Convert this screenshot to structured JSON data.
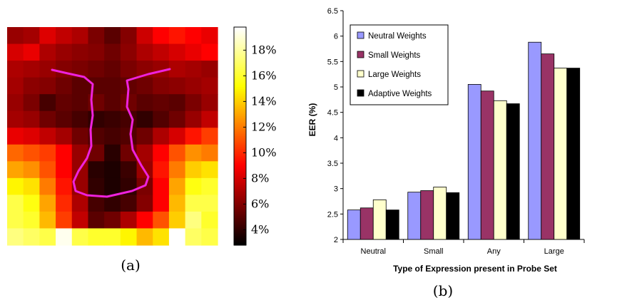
{
  "chart_data": [
    {
      "type": "heatmap",
      "caption": "(a)",
      "grid_rows": 13,
      "grid_cols": 13,
      "values": [
        [
          6.5,
          6.8,
          8.2,
          7.5,
          7.0,
          5.8,
          5.0,
          6.0,
          7.8,
          9.0,
          9.5,
          9.0,
          8.5
        ],
        [
          8.0,
          8.5,
          7.0,
          6.5,
          6.2,
          6.0,
          5.5,
          6.2,
          7.0,
          7.5,
          8.0,
          8.5,
          9.0
        ],
        [
          7.0,
          6.8,
          6.5,
          6.0,
          5.8,
          5.5,
          5.2,
          5.8,
          6.2,
          6.5,
          7.0,
          6.8,
          6.5
        ],
        [
          6.8,
          6.2,
          6.0,
          5.5,
          5.0,
          5.0,
          5.0,
          5.2,
          5.5,
          6.0,
          6.2,
          6.5,
          6.8
        ],
        [
          6.5,
          5.8,
          4.5,
          5.2,
          5.0,
          5.5,
          5.0,
          5.5,
          5.0,
          5.2,
          5.0,
          5.8,
          6.5
        ],
        [
          6.8,
          6.5,
          5.5,
          5.0,
          4.5,
          4.0,
          4.2,
          4.5,
          4.0,
          4.8,
          5.5,
          6.5,
          7.5
        ],
        [
          8.5,
          8.2,
          7.5,
          6.8,
          5.5,
          4.8,
          4.5,
          4.8,
          5.5,
          7.0,
          8.0,
          9.5,
          10.5
        ],
        [
          11.5,
          11.0,
          10.5,
          9.0,
          6.5,
          5.5,
          3.8,
          5.5,
          6.8,
          9.0,
          11.0,
          12.5,
          12.0
        ],
        [
          13.0,
          12.5,
          11.0,
          9.0,
          6.5,
          3.8,
          3.5,
          4.2,
          6.5,
          9.5,
          12.0,
          14.0,
          14.5
        ],
        [
          15.0,
          14.5,
          12.0,
          9.5,
          6.5,
          4.0,
          3.5,
          4.0,
          5.8,
          9.0,
          13.0,
          15.5,
          16.0
        ],
        [
          16.5,
          15.5,
          13.0,
          10.0,
          7.0,
          4.5,
          4.0,
          4.5,
          6.0,
          9.0,
          13.5,
          16.5,
          16.5
        ],
        [
          16.5,
          16.0,
          13.5,
          10.5,
          7.5,
          5.0,
          5.5,
          7.0,
          9.0,
          11.0,
          14.0,
          17.5,
          16.0
        ],
        [
          17.5,
          17.0,
          16.5,
          19.5,
          16.5,
          16.0,
          16.0,
          15.0,
          13.5,
          14.5,
          19.8,
          17.0,
          16.5
        ]
      ],
      "colorbar": {
        "colormap": "hot",
        "vmin": 2.8,
        "vmax": 19.8,
        "tick_values": [
          4,
          6,
          8,
          10,
          12,
          14,
          16,
          18
        ],
        "tick_labels": [
          "4%",
          "6%",
          "8%",
          "10%",
          "12%",
          "14%",
          "16%",
          "18%"
        ]
      },
      "overlay": {
        "color": "#ee22dd",
        "shape": "nose-outline"
      }
    },
    {
      "type": "bar",
      "caption": "(b)",
      "xlabel": "Type of Expression present in Probe Set",
      "ylabel": "EER (%)",
      "ylim": [
        2,
        6.5
      ],
      "yticks": [
        2,
        2.5,
        3,
        3.5,
        4,
        4.5,
        5,
        5.5,
        6,
        6.5
      ],
      "ytick_labels": [
        "2",
        "2.5",
        "3",
        "3.5",
        "4",
        "4.5",
        "5",
        "5.5",
        "6",
        "6.5"
      ],
      "categories": [
        "Neutral",
        "Small",
        "Any",
        "Large"
      ],
      "series": [
        {
          "name": "Neutral Weights",
          "color": "#9999ff",
          "values": [
            2.58,
            2.93,
            5.05,
            5.88
          ]
        },
        {
          "name": "Small Weights",
          "color": "#993366",
          "values": [
            2.62,
            2.96,
            4.92,
            5.65
          ]
        },
        {
          "name": "Large Weights",
          "color": "#ffffcc",
          "values": [
            2.78,
            3.03,
            4.73,
            5.37
          ]
        },
        {
          "name": "Adaptive Weights",
          "color": "#000000",
          "values": [
            2.58,
            2.92,
            4.67,
            5.37
          ]
        }
      ],
      "grid": false,
      "legend_position": "top-left"
    }
  ]
}
